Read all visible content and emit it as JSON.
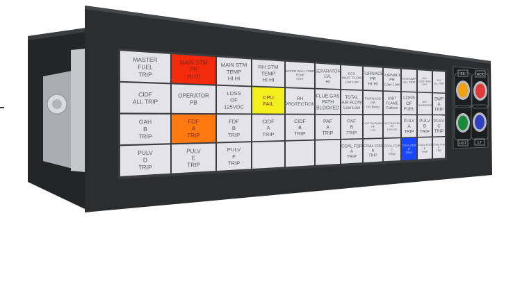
{
  "device": {
    "bezel_color": "#2b2d2e",
    "screen_gap_color": "#3a3c40",
    "cell_color": "#e4e4e8",
    "text_color": "#555a60"
  },
  "annunciator": {
    "rows": [
      [
        {
          "label": "MASTER\nFUEL\nTRIP"
        },
        {
          "label": "MAIN STM\nPR\nHI HI",
          "color": "#f42a0c"
        },
        {
          "label": "MAIN STM\nTEMP\nHI HI"
        },
        {
          "label": "RH STM\nTEMP\nHI HI"
        },
        {
          "label": "WATER WALL TUBE\nTEMP\nHI HI"
        },
        {
          "label": "SEPARATOR\nLVL\nHI"
        },
        {
          "label": "ECO\nINLET FLOW\nLow Low"
        },
        {
          "label": "FURNACE\nPR\nHI HI"
        },
        {
          "label": "FURNACE\nPR\nLow Low"
        },
        {
          "label": "RH PUMP\nALL TRIP"
        },
        {
          "label": "ALL\nFD/ID FAN\nOFF"
        },
        {
          "label": "RH\nALL TRIP"
        }
      ],
      [
        {
          "label": "CIDF\nALL TRIP"
        },
        {
          "label": "OPERATOR\nPB"
        },
        {
          "label": "LOSS\nOF\n125VDC"
        },
        {
          "label": "CPU\nFAIL",
          "color": "#f3ee1e"
        },
        {
          "label": "RH\nPROTECTION"
        },
        {
          "label": "FLUE GAS\nPATH\nBLOCKED"
        },
        {
          "label": "TOTAL\nAIR FLOW\nLow Low"
        },
        {
          "label": "FURNACE\nPR\nHI (Boot)"
        },
        {
          "label": "UNIT\nFLAME\nFailure"
        },
        {
          "label": "LOSS\nOF\nFUEL"
        },
        {
          "label": "ALL\nREHEATER"
        },
        {
          "label": "SWP\nA\nTRIP"
        }
      ],
      [
        {
          "label": "GAH\nB\nTRIP"
        },
        {
          "label": "FDF\nA\nTRIP",
          "color": "#fd7a12"
        },
        {
          "label": "FDF\nB\nTRIP"
        },
        {
          "label": "CIDF\nA\nTRIP"
        },
        {
          "label": "CIDF\nB\nTRIP"
        },
        {
          "label": "PAF\nA\nTRIP"
        },
        {
          "label": "PAF\nB\nTRIP"
        },
        {
          "label": "HOT PA/PURN\nOP\nLow"
        },
        {
          "label": "HOT PA/PURN\nOP\nLow Low"
        },
        {
          "label": "PULV\nA\nTRIP"
        },
        {
          "label": "PULV\nB\nTRIP"
        },
        {
          "label": "PULV\nC\nTRIP"
        }
      ],
      [
        {
          "label": "PULV\nD\nTRIP"
        },
        {
          "label": "PULV\nE\nTRIP"
        },
        {
          "label": "PULV\nF\nTRIP"
        },
        {
          "label": ""
        },
        {
          "label": ""
        },
        {
          "label": ""
        },
        {
          "label": "COAL FDR\nA\nTRIP"
        },
        {
          "label": "COAL FDR\nB\nTRIP"
        },
        {
          "label": "COAL FDR\nC\nTRIP"
        },
        {
          "label": "COAL FDR\nD\nTRIP",
          "color": "#1848ff"
        },
        {
          "label": "COAL FDR\nE\nTRIP"
        },
        {
          "label": "COAL FDR\nF\nTRIP"
        }
      ]
    ]
  },
  "buttons": [
    {
      "label": "SIL",
      "icon": "amber-lamp-button",
      "color": "#f0a010"
    },
    {
      "label": "ACK",
      "icon": "red-lamp-button",
      "color": "#e03a3a"
    },
    {
      "label": "RST",
      "icon": "green-lamp-button",
      "color": "#1a8a3a"
    },
    {
      "label": "LT",
      "icon": "blue-lamp-button",
      "color": "#3040c0"
    }
  ]
}
